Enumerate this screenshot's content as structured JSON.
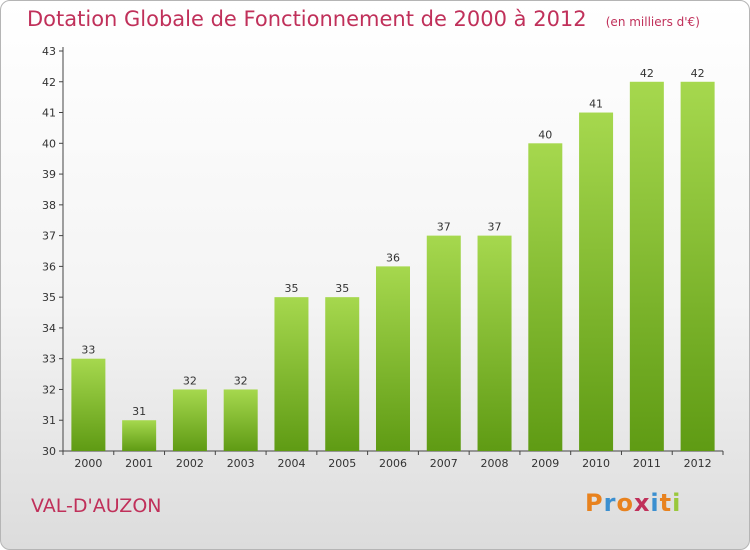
{
  "title": "Dotation Globale de Fonctionnement de 2000 à 2012",
  "subtitle": "(en milliers d'€)",
  "commune": "VAL-D'AUZON",
  "logo": {
    "text": "Proxiti",
    "colors": [
      "#e8821e",
      "#3b8fd0",
      "#e8821e",
      "#c0305a",
      "#3b8fd0",
      "#e8821e",
      "#9ac83c"
    ]
  },
  "colors": {
    "bar_light": "#a6d84e",
    "bar_dark": "#5f9b14",
    "title": "#c0305a"
  },
  "chart_data": {
    "type": "bar",
    "categories": [
      "2000",
      "2001",
      "2002",
      "2003",
      "2004",
      "2005",
      "2006",
      "2007",
      "2008",
      "2009",
      "2010",
      "2011",
      "2012"
    ],
    "values": [
      33,
      31,
      32,
      32,
      35,
      35,
      36,
      37,
      37,
      40,
      41,
      42,
      42
    ],
    "ylim": [
      30,
      43
    ],
    "yticks": [
      30,
      31,
      32,
      33,
      34,
      35,
      36,
      37,
      38,
      39,
      40,
      41,
      42,
      43
    ],
    "grid": false,
    "legend": "none"
  }
}
